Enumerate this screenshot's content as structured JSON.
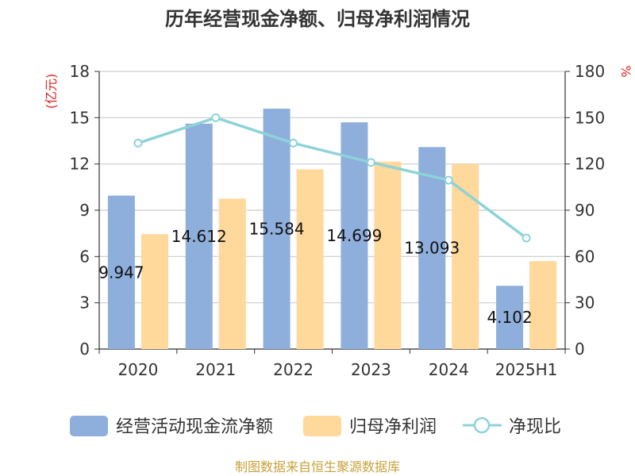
{
  "chart_data": {
    "type": "bar",
    "title": "历年经营现金净额、归母净利润情况",
    "categories": [
      "2020",
      "2021",
      "2022",
      "2023",
      "2024",
      "2025H1"
    ],
    "series": [
      {
        "name": "经营活动现金流净额",
        "type": "bar",
        "axis": "left",
        "values": [
          9.947,
          14.612,
          15.584,
          14.699,
          13.093,
          4.102
        ],
        "labels": [
          "9.947",
          "14.612",
          "15.584",
          "14.699",
          "13.093",
          "4.102"
        ],
        "color": "#8eaedc"
      },
      {
        "name": "归母净利润",
        "type": "bar",
        "axis": "left",
        "values": [
          7.45,
          9.75,
          11.65,
          12.15,
          12.0,
          5.7
        ],
        "color": "#ffd89b"
      },
      {
        "name": "净现比",
        "type": "line",
        "axis": "right",
        "values": [
          133.5,
          150,
          133.5,
          121,
          109.5,
          72
        ],
        "color": "#8dd3d8"
      }
    ],
    "left_axis": {
      "unit": "(亿元)",
      "min": 0,
      "max": 18,
      "ticks": [
        0,
        3,
        6,
        9,
        12,
        15,
        18
      ]
    },
    "right_axis": {
      "unit": "%",
      "min": 0,
      "max": 180,
      "ticks": [
        0,
        30,
        60,
        90,
        120,
        150,
        180
      ]
    },
    "unit_color": "#e02020",
    "grid": true,
    "legend_position": "bottom",
    "source": "制图数据来自恒生聚源数据库",
    "source_color": "#c8a13c"
  }
}
